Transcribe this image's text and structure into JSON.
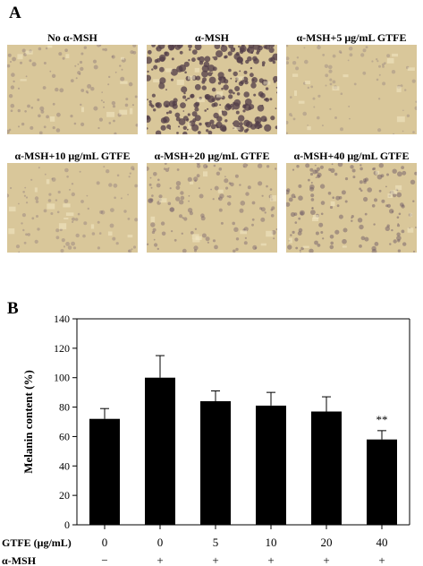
{
  "panel_a": {
    "letter": "A",
    "images": [
      {
        "caption": "No α-MSH",
        "pigment": 0.25
      },
      {
        "caption": "α-MSH",
        "pigment": 0.95
      },
      {
        "caption": "α-MSH+5 μg/mL GTFE",
        "pigment": 0.15
      },
      {
        "caption": "α-MSH+10 μg/mL GTFE",
        "pigment": 0.2
      },
      {
        "caption": "α-MSH+20 μg/mL GTFE",
        "pigment": 0.35
      },
      {
        "caption": "α-MSH+40 μg/mL GTFE",
        "pigment": 0.45
      }
    ]
  },
  "panel_b": {
    "letter": "B"
  },
  "chart_data": {
    "type": "bar",
    "ylabel": "Melanin content (%)",
    "ylim": [
      0,
      140
    ],
    "yticks": [
      0,
      20,
      40,
      60,
      80,
      100,
      120,
      140
    ],
    "categories": [
      "0",
      "0",
      "5",
      "10",
      "20",
      "40"
    ],
    "values": [
      72,
      100,
      84,
      81,
      77,
      58
    ],
    "errors": [
      7,
      15,
      7,
      9,
      10,
      6
    ],
    "significance": [
      "",
      "",
      "",
      "",
      "",
      "**"
    ],
    "row_labels": [
      {
        "label": "GTFE (μg/mL)",
        "values": [
          "0",
          "0",
          "5",
          "10",
          "20",
          "40"
        ]
      },
      {
        "label": "α-MSH",
        "values": [
          "−",
          "+",
          "+",
          "+",
          "+",
          "+"
        ]
      }
    ],
    "bar_color": "#000000"
  }
}
